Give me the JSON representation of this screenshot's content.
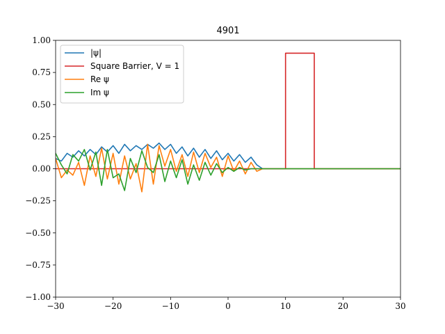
{
  "chart_data": {
    "type": "line",
    "title": "4901",
    "xlabel": "",
    "ylabel": "",
    "xlim": [
      -30,
      30
    ],
    "ylim": [
      -1.0,
      1.0
    ],
    "grid": false,
    "legend_placement": "top-left",
    "xticks": [
      -30,
      -20,
      -10,
      0,
      10,
      20,
      30
    ],
    "xtick_labels": [
      "−30",
      "−20",
      "−10",
      "0",
      "10",
      "20",
      "30"
    ],
    "yticks": [
      -1.0,
      -0.75,
      -0.5,
      -0.25,
      0.0,
      0.25,
      0.5,
      0.75,
      1.0
    ],
    "ytick_labels": [
      "−1.00",
      "−0.75",
      "−0.50",
      "−0.25",
      "0.00",
      "0.25",
      "0.50",
      "0.75",
      "1.00"
    ],
    "series": [
      {
        "name": "|ψ|",
        "color": "#1f77b4",
        "x": [
          -30,
          -29,
          -28,
          -27,
          -26,
          -25,
          -24,
          -23,
          -22,
          -21,
          -20,
          -19,
          -18,
          -17,
          -16,
          -15,
          -14,
          -13,
          -12,
          -11,
          -10,
          -9,
          -8,
          -7,
          -6,
          -5,
          -4,
          -3,
          -2,
          -1,
          0,
          1,
          2,
          3,
          4,
          5,
          6,
          30
        ],
        "y": [
          0.08,
          0.06,
          0.12,
          0.09,
          0.14,
          0.1,
          0.15,
          0.11,
          0.17,
          0.13,
          0.18,
          0.12,
          0.19,
          0.14,
          0.18,
          0.15,
          0.19,
          0.16,
          0.2,
          0.15,
          0.19,
          0.12,
          0.17,
          0.1,
          0.16,
          0.09,
          0.15,
          0.08,
          0.14,
          0.07,
          0.12,
          0.06,
          0.11,
          0.05,
          0.09,
          0.03,
          0.0,
          0.0
        ]
      },
      {
        "name": "Square Barrier, V = 1",
        "color": "#d62728",
        "x": [
          -30,
          10,
          10,
          15,
          15,
          30
        ],
        "y": [
          0.0,
          0.0,
          0.9,
          0.9,
          0.0,
          0.0
        ]
      },
      {
        "name": "Re ψ",
        "color": "#ff7f0e",
        "x": [
          -30,
          -29,
          -28,
          -27,
          -26,
          -25,
          -24,
          -23,
          -22,
          -21,
          -20,
          -19,
          -18,
          -17,
          -16,
          -15,
          -14,
          -13,
          -12,
          -11,
          -10,
          -9,
          -8,
          -7,
          -6,
          -5,
          -4,
          -3,
          -2,
          -1,
          0,
          1,
          2,
          3,
          4,
          5,
          6,
          30
        ],
        "y": [
          0.08,
          -0.07,
          -0.01,
          -0.05,
          0.05,
          -0.13,
          0.1,
          -0.06,
          0.16,
          -0.08,
          0.12,
          -0.12,
          0.1,
          -0.08,
          0.04,
          -0.18,
          0.19,
          -0.12,
          0.18,
          0.02,
          0.15,
          -0.02,
          0.11,
          -0.06,
          0.13,
          -0.03,
          0.12,
          0.01,
          0.09,
          -0.06,
          0.1,
          -0.02,
          0.06,
          -0.04,
          0.05,
          -0.02,
          0.0,
          0.0
        ]
      },
      {
        "name": "Im ψ",
        "color": "#2ca02c",
        "x": [
          -30,
          -29,
          -28,
          -27,
          -26,
          -25,
          -24,
          -23,
          -22,
          -21,
          -20,
          -19,
          -18,
          -17,
          -16,
          -15,
          -14,
          -13,
          -12,
          -11,
          -10,
          -9,
          -8,
          -7,
          -6,
          -5,
          -4,
          -3,
          -2,
          -1,
          0,
          1,
          2,
          3,
          4,
          5,
          6,
          30
        ],
        "y": [
          0.12,
          0.03,
          -0.04,
          0.11,
          0.06,
          0.15,
          -0.01,
          0.13,
          -0.13,
          0.15,
          -0.07,
          -0.04,
          -0.17,
          0.08,
          -0.03,
          0.14,
          0.01,
          -0.03,
          0.11,
          -0.1,
          0.06,
          -0.07,
          0.07,
          -0.12,
          0.03,
          -0.09,
          0.05,
          -0.05,
          0.04,
          -0.03,
          0.01,
          -0.02,
          0.01,
          -0.01,
          0.0,
          0.0,
          0.0,
          0.0
        ]
      }
    ]
  },
  "legend": {
    "entries": [
      {
        "label": "|ψ|",
        "color": "#1f77b4"
      },
      {
        "label": "Square Barrier, V = 1",
        "color": "#d62728"
      },
      {
        "label": "Re ψ",
        "color": "#ff7f0e"
      },
      {
        "label": "Im ψ",
        "color": "#2ca02c"
      }
    ]
  }
}
